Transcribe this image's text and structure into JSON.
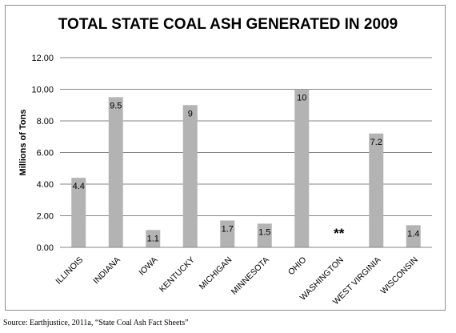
{
  "chart_data": {
    "type": "bar",
    "title": "TOTAL STATE COAL ASH GENERATED IN 2009",
    "xlabel": "",
    "ylabel": "Millions of Tons",
    "ylim": [
      0,
      12
    ],
    "yticks": [
      "0.00",
      "2.00",
      "4.00",
      "6.00",
      "8.00",
      "10.00",
      "12.00"
    ],
    "grid": true,
    "legend": "none",
    "bar_color": "#b3b3b3",
    "categories": [
      "ILLINOIS",
      "INDIANA",
      "IOWA",
      "KENTUCKY",
      "MICHIGAN",
      "MINNESOTA",
      "OHIO",
      "WASHINGTON",
      "WEST VIRGINIA",
      "WISCONSIN"
    ],
    "values": [
      4.4,
      9.5,
      1.1,
      9,
      1.7,
      1.5,
      10,
      null,
      7.2,
      1.4
    ],
    "data_labels": [
      "4.4",
      "9.5",
      "1.1",
      "9",
      "1.7",
      "1.5",
      "10",
      "",
      "7.2",
      "1.4"
    ],
    "missing_marker": "**"
  },
  "source": "Source: Earthjustice, 2011a, “State Coal Ash Fact Sheets”"
}
